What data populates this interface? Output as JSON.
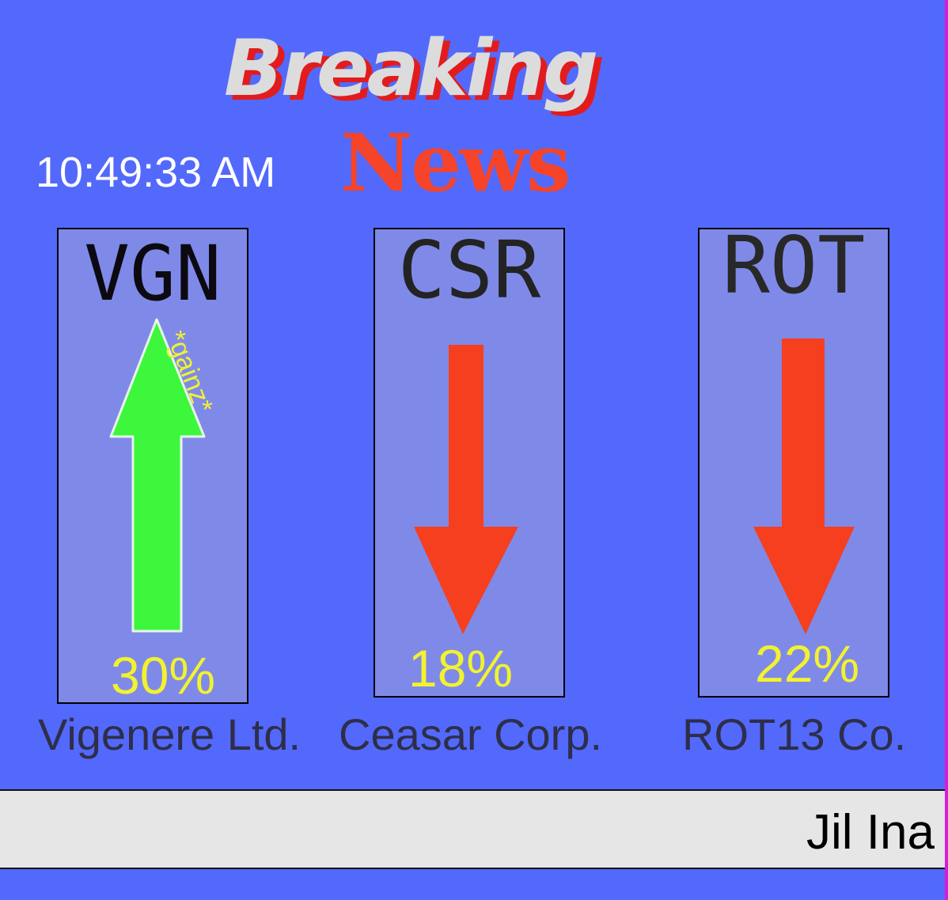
{
  "header": {
    "title_line1": "Breaking",
    "title_line2": "News",
    "clock": "10:49:33 AM"
  },
  "stocks": [
    {
      "ticker": "VGN",
      "change": "30%",
      "direction": "up",
      "company": "Vigenere Ltd.",
      "note": "*gainz*",
      "arrow_color": "#3cf73c"
    },
    {
      "ticker": "CSR",
      "change": "18%",
      "direction": "down",
      "company": "Ceasar Corp.",
      "arrow_color": "#f53f1f"
    },
    {
      "ticker": "ROT",
      "change": "22%",
      "direction": "down",
      "company": "ROT13 Co.",
      "arrow_color": "#f53f1f"
    }
  ],
  "news_ticker": {
    "text": "Jil Ina"
  },
  "colors": {
    "background": "#5369fb",
    "card": "#7f8ae8",
    "percent": "#f2f22e",
    "bar": "#e6e6e6"
  }
}
